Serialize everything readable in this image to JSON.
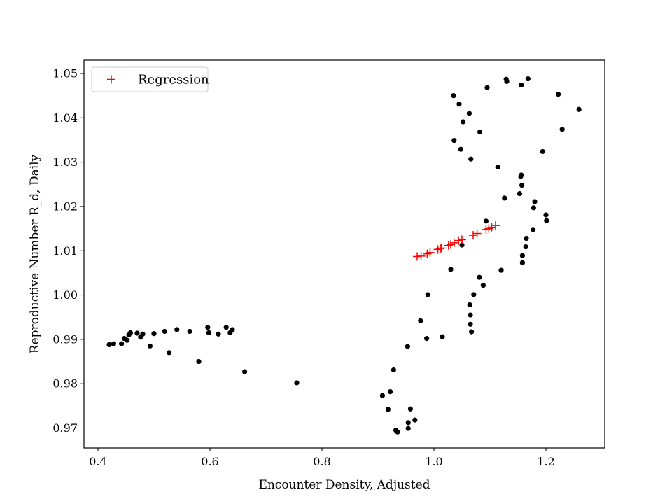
{
  "chart_data": {
    "type": "scatter",
    "title": "",
    "xlabel": "Encounter Density, Adjusted",
    "ylabel": "Reproductive Number R_d, Daily",
    "xlim": [
      0.375,
      1.305
    ],
    "ylim": [
      0.9655,
      1.053
    ],
    "xticks": [
      {
        "value": 0.4,
        "label": "0.4"
      },
      {
        "value": 0.6,
        "label": "0.6"
      },
      {
        "value": 0.8,
        "label": "0.8"
      },
      {
        "value": 1.0,
        "label": "1.0"
      },
      {
        "value": 1.2,
        "label": "1.2"
      }
    ],
    "yticks": [
      {
        "value": 0.97,
        "label": "0.97"
      },
      {
        "value": 0.98,
        "label": "0.98"
      },
      {
        "value": 0.99,
        "label": "0.99"
      },
      {
        "value": 1.0,
        "label": "1.00"
      },
      {
        "value": 1.01,
        "label": "1.01"
      },
      {
        "value": 1.02,
        "label": "1.02"
      },
      {
        "value": 1.03,
        "label": "1.03"
      },
      {
        "value": 1.04,
        "label": "1.04"
      },
      {
        "value": 1.05,
        "label": "1.05"
      }
    ],
    "grid": false,
    "legend": {
      "placement": "top-left",
      "entries": [
        "Regression"
      ]
    },
    "series": [
      {
        "marker": "dot",
        "color": "#000000",
        "points": [
          [
            0.42,
            0.9888
          ],
          [
            0.428,
            0.989
          ],
          [
            0.442,
            0.989
          ],
          [
            0.447,
            0.9902
          ],
          [
            0.452,
            0.9898
          ],
          [
            0.455,
            0.991
          ],
          [
            0.458,
            0.9915
          ],
          [
            0.47,
            0.9914
          ],
          [
            0.476,
            0.9905
          ],
          [
            0.48,
            0.9912
          ],
          [
            0.493,
            0.9885
          ],
          [
            0.5,
            0.9913
          ],
          [
            0.519,
            0.9918
          ],
          [
            0.527,
            0.987
          ],
          [
            0.541,
            0.9922
          ],
          [
            0.564,
            0.9918
          ],
          [
            0.58,
            0.985
          ],
          [
            0.596,
            0.9927
          ],
          [
            0.598,
            0.9915
          ],
          [
            0.615,
            0.9912
          ],
          [
            0.629,
            0.9927
          ],
          [
            0.636,
            0.9915
          ],
          [
            0.64,
            0.9922
          ],
          [
            0.662,
            0.9827
          ],
          [
            0.755,
            0.9802
          ],
          [
            0.908,
            0.9773
          ],
          [
            0.918,
            0.9742
          ],
          [
            0.922,
            0.9782
          ],
          [
            0.928,
            0.9831
          ],
          [
            0.932,
            0.9695
          ],
          [
            0.935,
            0.9691
          ],
          [
            0.953,
            0.9884
          ],
          [
            0.954,
            0.9712
          ],
          [
            0.954,
            0.9699
          ],
          [
            0.958,
            0.9743
          ],
          [
            0.966,
            0.9718
          ],
          [
            0.976,
            0.9942
          ],
          [
            0.987,
            0.9902
          ],
          [
            0.989,
            1.0001
          ],
          [
            1.015,
            0.9906
          ],
          [
            1.03,
            1.0058
          ],
          [
            1.035,
            1.045
          ],
          [
            1.036,
            1.0349
          ],
          [
            1.045,
            1.0431
          ],
          [
            1.048,
            1.0329
          ],
          [
            1.05,
            1.0113
          ],
          [
            1.052,
            1.0391
          ],
          [
            1.063,
            1.041
          ],
          [
            1.064,
            0.9978
          ],
          [
            1.065,
            0.9955
          ],
          [
            1.065,
            0.9934
          ],
          [
            1.066,
            1.0307
          ],
          [
            1.067,
            0.9917
          ],
          [
            1.071,
            1.0001
          ],
          [
            1.081,
            1.004
          ],
          [
            1.082,
            1.0368
          ],
          [
            1.088,
            1.0022
          ],
          [
            1.093,
            1.0167
          ],
          [
            1.095,
            1.0468
          ],
          [
            1.114,
            1.0289
          ],
          [
            1.12,
            1.0056
          ],
          [
            1.126,
            1.0219
          ],
          [
            1.129,
            1.0487
          ],
          [
            1.13,
            1.0482
          ],
          [
            1.153,
            1.0229
          ],
          [
            1.155,
            1.0268
          ],
          [
            1.156,
            1.0271
          ],
          [
            1.156,
            1.0474
          ],
          [
            1.157,
            1.0248
          ],
          [
            1.158,
            1.0089
          ],
          [
            1.158,
            1.0073
          ],
          [
            1.164,
            1.0109
          ],
          [
            1.165,
            1.0128
          ],
          [
            1.168,
            1.0488
          ],
          [
            1.177,
            1.0148
          ],
          [
            1.178,
            1.0197
          ],
          [
            1.18,
            1.0211
          ],
          [
            1.194,
            1.0324
          ],
          [
            1.2,
            1.0181
          ],
          [
            1.201,
            1.0168
          ],
          [
            1.222,
            1.0453
          ],
          [
            1.229,
            1.0374
          ],
          [
            1.259,
            1.0419
          ]
        ]
      },
      {
        "name": "Regression",
        "marker": "plus",
        "color": "#ff0000",
        "points": [
          [
            0.97,
            1.0087
          ],
          [
            0.977,
            1.0088
          ],
          [
            0.988,
            1.0093
          ],
          [
            0.993,
            1.0096
          ],
          [
            1.007,
            1.0103
          ],
          [
            1.011,
            1.0105
          ],
          [
            1.013,
            1.0106
          ],
          [
            1.026,
            1.0112
          ],
          [
            1.03,
            1.0114
          ],
          [
            1.036,
            1.0118
          ],
          [
            1.044,
            1.0123
          ],
          [
            1.05,
            1.0125
          ],
          [
            1.07,
            1.0135
          ],
          [
            1.077,
            1.0139
          ],
          [
            1.093,
            1.0148
          ],
          [
            1.098,
            1.015
          ],
          [
            1.103,
            1.0153
          ],
          [
            1.11,
            1.0157
          ]
        ]
      }
    ]
  }
}
